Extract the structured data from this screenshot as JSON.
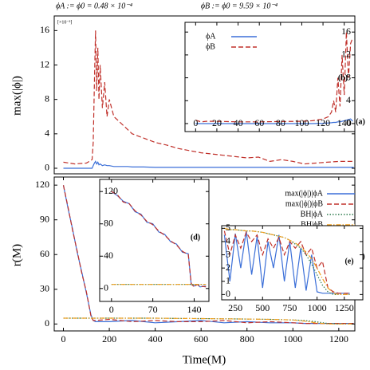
{
  "header": [
    "ϕA := ϕ0 = 0.48 × 10⁻⁴",
    "ϕB := ϕ0 = 9.59 × 10⁻⁴"
  ],
  "chart_data": [
    {
      "type": "line",
      "annotation": "(a)",
      "multiplier": "[×10⁻³]",
      "ylabel": "max(|ϕ|)",
      "xlim": [
        -40,
        1270
      ],
      "ylim": [
        -0.65,
        17.7
      ],
      "yticks": [
        0,
        4,
        8,
        12,
        16
      ],
      "x": [
        0,
        50,
        100,
        125,
        130,
        135,
        140,
        145,
        150,
        155,
        160,
        170,
        180,
        190,
        200,
        220,
        240,
        260,
        280,
        300,
        350,
        400,
        450,
        500,
        600,
        700,
        800,
        850,
        900,
        950,
        1000,
        1050,
        1100,
        1150,
        1200,
        1265
      ],
      "series": [
        {
          "color": "#3b6fd8",
          "line_style": "solid",
          "values": [
            0,
            0,
            0,
            0,
            0.3,
            0.6,
            0.8,
            0.5,
            0.7,
            0.4,
            0.5,
            0.3,
            0.4,
            0.3,
            0.3,
            0.2,
            0.2,
            0.2,
            0.2,
            0.15,
            0.15,
            0.1,
            0.1,
            0.1,
            0.1,
            0.1,
            0.1,
            0.1,
            0.1,
            0.1,
            0.1,
            0.1,
            0.1,
            0.1,
            0.1,
            0.1
          ]
        },
        {
          "color": "#c0302a",
          "line_style": "dashed",
          "values": [
            0.7,
            0.5,
            0.6,
            1.0,
            3,
            10,
            16,
            9,
            14,
            8,
            12,
            7,
            10,
            6,
            8,
            6,
            5.5,
            5,
            4.5,
            4,
            3.5,
            3,
            2.7,
            2.3,
            1.8,
            1.5,
            1.2,
            1.3,
            0.8,
            1.0,
            0.8,
            0.5,
            0.6,
            0.7,
            0.8,
            0.8
          ]
        }
      ]
    },
    {
      "type": "line",
      "annotation": "(b)",
      "legend": "upper left",
      "xlim": [
        -10,
        150
      ],
      "ylim": [
        -1.4,
        17.7
      ],
      "xticks": [
        0,
        20,
        40,
        60,
        80,
        100,
        120,
        140
      ],
      "yticks": [
        0,
        4,
        8,
        12,
        16
      ],
      "x": [
        0,
        5,
        10,
        20,
        40,
        60,
        80,
        100,
        110,
        120,
        125,
        128,
        130,
        132,
        134,
        136,
        138,
        140,
        142,
        144,
        146,
        148
      ],
      "series": [
        {
          "name": "ϕA",
          "color": "#3b6fd8",
          "line_style": "solid",
          "values": [
            0,
            0,
            0,
            0,
            0,
            0,
            0,
            0,
            0,
            0.05,
            0.1,
            0.15,
            0.2,
            0.2,
            0.3,
            0.3,
            0.4,
            0.5,
            0.6,
            0.7,
            0.8,
            0.4
          ]
        },
        {
          "name": "ϕB",
          "color": "#c0302a",
          "line_style": "dashed",
          "values": [
            0.6,
            0.3,
            0.4,
            0.4,
            0.3,
            0.3,
            0.35,
            0.4,
            0.5,
            0.8,
            1.2,
            2,
            4,
            2,
            8,
            3,
            12,
            5,
            16,
            8,
            14,
            15
          ]
        }
      ]
    },
    {
      "type": "line",
      "annotation": "(c)",
      "ylabel": "r(M)",
      "xlabel": "Time(M)",
      "legend": "upper right",
      "xlim": [
        -40,
        1270
      ],
      "ylim": [
        -6,
        127
      ],
      "xticks": [
        0,
        200,
        400,
        600,
        800,
        1000,
        1200
      ],
      "yticks": [
        0,
        30,
        60,
        90,
        120
      ],
      "x": [
        0,
        20,
        40,
        60,
        80,
        100,
        120,
        130,
        140,
        200,
        300,
        400,
        500,
        600,
        700,
        800,
        900,
        1000,
        1050,
        1100,
        1150,
        1200,
        1265
      ],
      "series": [
        {
          "name": "max(|ϕ|)|ϕA",
          "color": "#3b6fd8",
          "line_style": "solid",
          "values": [
            120,
            100,
            82,
            62,
            45,
            27,
            8,
            3,
            2,
            2,
            3,
            1,
            2,
            3,
            1,
            2,
            1,
            1,
            0.5,
            0.5,
            0.5,
            0.5,
            0.5
          ]
        },
        {
          "name": "max(|ϕ|)|ϕB",
          "color": "#c0302a",
          "line_style": "dashed",
          "values": [
            120,
            101,
            81,
            63,
            44,
            28,
            7,
            3,
            3,
            4,
            2,
            3,
            2,
            2,
            3,
            1,
            2,
            1,
            0.5,
            0.5,
            0.5,
            0.5,
            0.5
          ]
        },
        {
          "name": "BH|ϕA",
          "color": "#2e7d4f",
          "line_style": "dotted",
          "values": [
            5,
            5,
            5,
            5,
            5,
            5,
            5,
            5,
            5,
            5,
            5,
            5,
            4.8,
            4.7,
            4.5,
            4.3,
            4,
            3.5,
            3,
            2,
            0.5,
            0,
            0
          ]
        },
        {
          "name": "BH|ϕB",
          "color": "#f0a020",
          "line_style": "dashdot",
          "values": [
            5,
            5,
            5,
            5,
            5,
            5,
            5,
            5,
            5,
            5,
            5,
            5,
            4.8,
            4.7,
            4.5,
            4.3,
            4,
            3.5,
            2.5,
            1,
            0,
            0,
            0
          ]
        }
      ]
    },
    {
      "type": "line",
      "annotation": "(d)",
      "xlim": [
        -20,
        165
      ],
      "ylim": [
        -16,
        135
      ],
      "xticks": [
        0,
        70,
        140
      ],
      "yticks": [
        0,
        40,
        80,
        120
      ],
      "x": [
        0,
        10,
        20,
        30,
        40,
        50,
        60,
        70,
        80,
        90,
        100,
        110,
        120,
        130,
        135,
        140,
        145,
        150,
        160
      ],
      "series": [
        {
          "color": "#3b6fd8",
          "line_style": "solid",
          "values": [
            120,
            115,
            108,
            105,
            95,
            92,
            82,
            80,
            70,
            67,
            58,
            55,
            45,
            43,
            5,
            3,
            5,
            2,
            3
          ]
        },
        {
          "color": "#c0302a",
          "line_style": "dashed",
          "values": [
            120,
            116,
            107,
            105,
            96,
            91,
            83,
            79,
            71,
            66,
            59,
            54,
            46,
            42,
            6,
            2,
            5,
            3,
            2
          ]
        },
        {
          "color": "#2e7d4f",
          "line_style": "dotted",
          "values": [
            5,
            5,
            5,
            5,
            5,
            5,
            5,
            5,
            5,
            5,
            5,
            5,
            5,
            5,
            5,
            5,
            5,
            5,
            5
          ]
        },
        {
          "color": "#f0a020",
          "line_style": "dashdot",
          "values": [
            5,
            5,
            5,
            5,
            5,
            5,
            5,
            5,
            5,
            5,
            5,
            5,
            5,
            5,
            5,
            5,
            5,
            5,
            5
          ]
        }
      ]
    },
    {
      "type": "line",
      "annotation": "(e)",
      "xlim": [
        125,
        1420
      ],
      "ylim": [
        -0.4,
        5.2
      ],
      "xticks": [
        250,
        500,
        750,
        1000,
        1250
      ],
      "yticks": [
        0,
        1,
        2,
        3,
        4,
        5
      ],
      "x": [
        150,
        200,
        250,
        300,
        350,
        400,
        450,
        500,
        550,
        600,
        650,
        700,
        750,
        800,
        850,
        900,
        950,
        1000,
        1050,
        1100,
        1150,
        1200,
        1250,
        1300
      ],
      "series": [
        {
          "color": "#3b6fd8",
          "line_style": "solid",
          "values": [
            4.5,
            1,
            4.6,
            2,
            4.8,
            1.5,
            4.4,
            0.5,
            4,
            2,
            4.5,
            1,
            4,
            0.5,
            3.5,
            0.3,
            3,
            0.2,
            0.1,
            0.1,
            0.1,
            0.1,
            0.1,
            0.1
          ]
        },
        {
          "color": "#c0302a",
          "line_style": "dashed",
          "values": [
            4.8,
            3,
            4.5,
            3.5,
            4.7,
            4,
            4.5,
            3,
            4.2,
            3.5,
            4.3,
            3,
            4,
            3.5,
            4,
            3,
            3.5,
            2,
            2.5,
            0.5,
            0.2,
            0.1,
            0.1,
            0.1
          ]
        },
        {
          "color": "#2e7d4f",
          "line_style": "dotted",
          "values": [
            5,
            4.9,
            4.9,
            4.85,
            4.8,
            4.8,
            4.75,
            4.7,
            4.6,
            4.5,
            4.4,
            4.3,
            4.1,
            3.8,
            3.5,
            3.0,
            2.3,
            1.5,
            0.7,
            0.2,
            0,
            0,
            0,
            0
          ]
        },
        {
          "color": "#f0a020",
          "line_style": "dashdot",
          "values": [
            5,
            4.9,
            4.9,
            4.85,
            4.8,
            4.8,
            4.75,
            4.7,
            4.6,
            4.5,
            4.4,
            4.3,
            4.1,
            3.9,
            3.6,
            3.2,
            2.7,
            2,
            1.2,
            0.5,
            0.1,
            0,
            0,
            0
          ]
        }
      ]
    }
  ]
}
